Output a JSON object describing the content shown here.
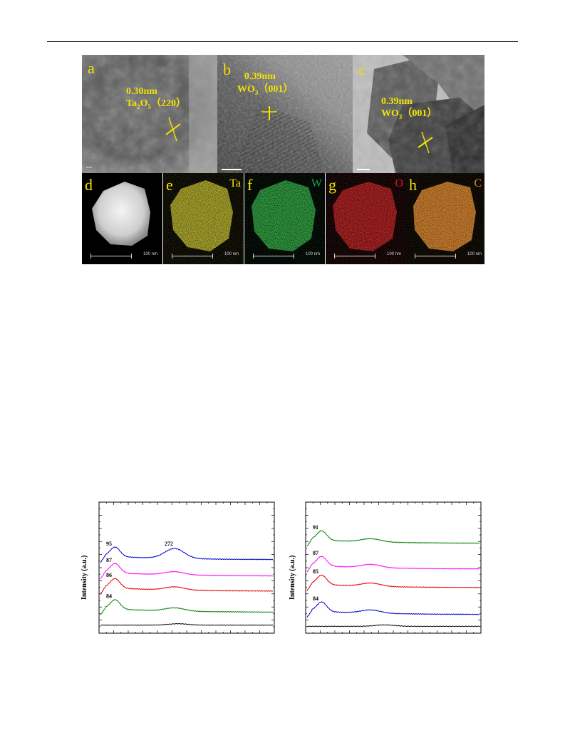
{
  "figure_tem": {
    "panels": [
      {
        "label": "a",
        "spacing": "0.30nm",
        "phase_main": "Ta",
        "phase_sub1": "2",
        "phase_mid": "O",
        "phase_sub2": "5",
        "plane": "（220）"
      },
      {
        "label": "b",
        "spacing": "0.39nm",
        "phase_main": "WO",
        "phase_sub1": "3",
        "phase_mid": "",
        "phase_sub2": "",
        "plane": "（001）"
      },
      {
        "label": "c",
        "spacing": "0.39nm",
        "phase_main": "WO",
        "phase_sub1": "3",
        "phase_mid": "",
        "phase_sub2": "",
        "plane": "（001）"
      }
    ]
  },
  "figure_eds": {
    "scale_label": "100 nm",
    "panels": [
      {
        "label": "d",
        "element": "",
        "color": "#e0e0e0"
      },
      {
        "label": "e",
        "element": "Ta",
        "color": "#c8bd1e"
      },
      {
        "label": "f",
        "element": "W",
        "color": "#27b23a"
      },
      {
        "label": "g",
        "element": "O",
        "color": "#c11a1a"
      },
      {
        "label": "h",
        "element": "C",
        "color": "#d2771f"
      }
    ]
  },
  "chart_data": [
    {
      "type": "line",
      "ylabel": "Intensity  (a.u.)",
      "xlabel": "",
      "annotations": [
        "95",
        "272",
        "87",
        "86",
        "84"
      ],
      "series": [
        {
          "color": "#0000cc",
          "offset": 0.58,
          "peak_label": "95",
          "second_peak": "272"
        },
        {
          "color": "#ff00ff",
          "offset": 0.44,
          "peak_label": "87"
        },
        {
          "color": "#e00000",
          "offset": 0.31,
          "peak_label": "86"
        },
        {
          "color": "#008000",
          "offset": 0.13,
          "peak_label": "84"
        },
        {
          "color": "#000000",
          "offset": 0.02,
          "peak_label": ""
        }
      ]
    },
    {
      "type": "line",
      "ylabel": "Intensity  (a.u.)",
      "xlabel": "",
      "annotations": [
        "91",
        "87",
        "85",
        "84"
      ],
      "series": [
        {
          "color": "#008000",
          "offset": 0.72,
          "peak_label": "91"
        },
        {
          "color": "#ff00ff",
          "offset": 0.5,
          "peak_label": "87"
        },
        {
          "color": "#e00000",
          "offset": 0.34,
          "peak_label": "85"
        },
        {
          "color": "#0000cc",
          "offset": 0.11,
          "peak_label": "84"
        },
        {
          "color": "#000000",
          "offset": 0.01,
          "peak_label": ""
        }
      ]
    }
  ]
}
